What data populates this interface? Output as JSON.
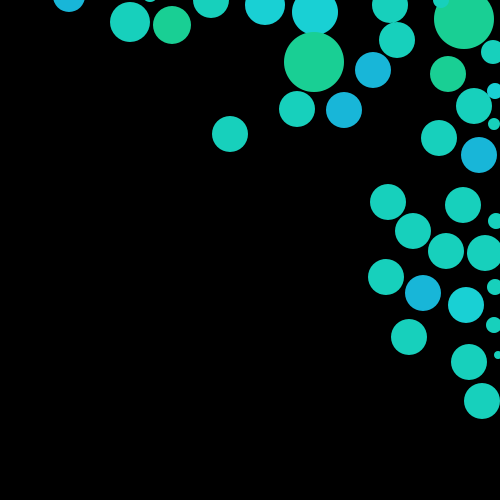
{
  "background_color": "#000000",
  "palette": {
    "green": "#19CF94",
    "teal": "#17D0BC",
    "cyan": "#19D0D4",
    "blue": "#18B6D8"
  },
  "dot_colors": [
    "blue",
    "teal",
    "green",
    "teal",
    "cyan",
    "cyan",
    "teal",
    "green",
    "teal",
    "teal",
    "green",
    "blue",
    "blue",
    "teal",
    "green",
    "teal",
    "cyan",
    "teal",
    "teal",
    "blue",
    "teal",
    "teal",
    "teal",
    "teal",
    "teal",
    "teal",
    "teal",
    "teal",
    "blue",
    "cyan",
    "teal",
    "teal",
    "teal",
    "teal",
    "teal",
    "teal",
    "teal",
    "teal",
    "teal",
    "teal",
    "green",
    "teal",
    "teal",
    "green"
  ]
}
